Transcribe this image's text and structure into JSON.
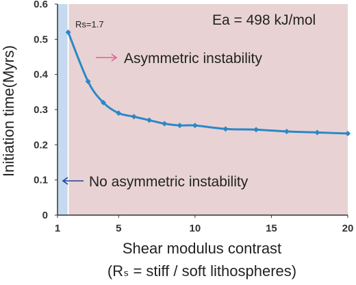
{
  "chart_data": {
    "type": "line",
    "x": [
      1.7,
      3,
      4,
      5,
      6,
      7,
      8,
      9,
      10,
      12,
      14,
      16,
      18,
      20
    ],
    "series": [
      {
        "values": [
          0.52,
          0.38,
          0.32,
          0.29,
          0.28,
          0.27,
          0.26,
          0.255,
          0.255,
          0.245,
          0.243,
          0.238,
          0.235,
          0.232
        ]
      }
    ],
    "xlim": [
      1,
      20
    ],
    "ylim": [
      0,
      0.6
    ],
    "xticks": [
      "1",
      "5",
      "10",
      "15",
      "20"
    ],
    "yticks": [
      "0",
      "0.1",
      "0.2",
      "0.3",
      "0.4",
      "0.5",
      "0.6"
    ],
    "xlabel_line1": "Shear modulus contrast",
    "xlabel_line2": "(Rₛ = stiff / soft  lithospheres)",
    "ylabel": "Initiation time(Myrs)",
    "regions": [
      {
        "from": 1,
        "to": 1.7,
        "color": "#c5daf0"
      },
      {
        "from": 1.7,
        "to": 20,
        "color": "#e8d2d3"
      }
    ],
    "annotations": {
      "ea": "Ea = 498 kJ/mol",
      "rs": "Rs=1.7",
      "asymmetric": "Asymmetric instability",
      "no_asymmetric": "No asymmetric instability"
    },
    "colors": {
      "line": "#2a87c8",
      "pink_arrow": "#e0609a",
      "blue_arrow": "#1f3f9a"
    }
  }
}
